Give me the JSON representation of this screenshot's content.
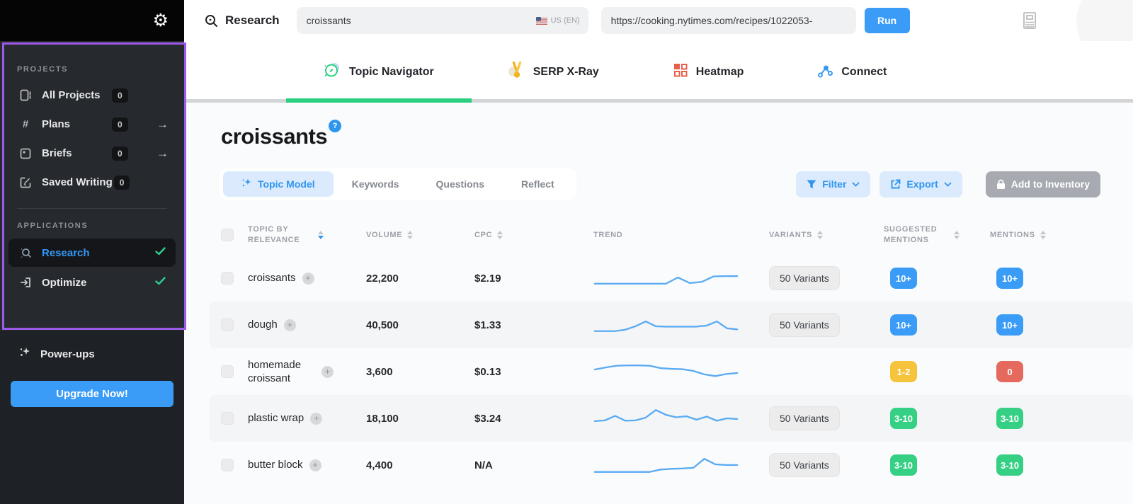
{
  "sidebar": {
    "projects_label": "PROJECTS",
    "projects": [
      {
        "label": "All Projects",
        "count": "0",
        "arrow": ""
      },
      {
        "label": "Plans",
        "count": "0",
        "arrow": "→"
      },
      {
        "label": "Briefs",
        "count": "0",
        "arrow": "→"
      },
      {
        "label": "Saved Writing",
        "count": "0",
        "arrow": ""
      }
    ],
    "applications_label": "APPLICATIONS",
    "applications": [
      {
        "label": "Research",
        "active": true
      },
      {
        "label": "Optimize",
        "active": false
      }
    ],
    "powerups_label": "Power-ups",
    "upgrade_label": "Upgrade Now!"
  },
  "topbar": {
    "app_label": "Research",
    "keyword_value": "croissants",
    "locale_label": "US (EN)",
    "url_value": "https://cooking.nytimes.com/recipes/1022053-",
    "run_label": "Run"
  },
  "tabs": [
    {
      "label": "Topic Navigator",
      "active": true
    },
    {
      "label": "SERP X-Ray",
      "active": false
    },
    {
      "label": "Heatmap",
      "active": false
    },
    {
      "label": "Connect",
      "active": false
    }
  ],
  "main": {
    "title": "croissants",
    "help_badge": "?",
    "subtabs": [
      {
        "label": "Topic Model",
        "active": true
      },
      {
        "label": "Keywords",
        "active": false
      },
      {
        "label": "Questions",
        "active": false
      },
      {
        "label": "Reflect",
        "active": false
      }
    ],
    "filter_label": "Filter",
    "export_label": "Export",
    "inventory_label": "Add to Inventory"
  },
  "table": {
    "columns": {
      "topic": "TOPIC BY RELEVANCE",
      "volume": "VOLUME",
      "cpc": "CPC",
      "trend": "TREND",
      "variants": "VARIANTS",
      "suggested": "SUGGESTED MENTIONS",
      "mentions": "MENTIONS"
    },
    "rows": [
      {
        "topic": "croissants",
        "volume": "22,200",
        "cpc": "$2.19",
        "trend": [
          12,
          12,
          12,
          12,
          12,
          12,
          12,
          30,
          14,
          17,
          33,
          34,
          34
        ],
        "variants": "50 Variants",
        "suggested": "10+",
        "suggested_color": "blue",
        "mentions": "10+",
        "mentions_color": "blue"
      },
      {
        "topic": "dough",
        "volume": "40,500",
        "cpc": "$1.33",
        "trend": [
          10,
          10,
          10,
          14,
          24,
          38,
          24,
          23,
          23,
          23,
          23,
          26,
          38,
          18,
          15
        ],
        "variants": "50 Variants",
        "suggested": "10+",
        "suggested_color": "blue",
        "mentions": "10+",
        "mentions_color": "blue"
      },
      {
        "topic": "homemade croissant",
        "volume": "3,600",
        "cpc": "$0.13",
        "trend": [
          34,
          40,
          45,
          46,
          46,
          45,
          38,
          36,
          35,
          30,
          20,
          15,
          21,
          24
        ],
        "variants": "",
        "suggested": "1-2",
        "suggested_color": "yellow",
        "mentions": "0",
        "mentions_color": "red"
      },
      {
        "topic": "plastic wrap",
        "volume": "18,100",
        "cpc": "$3.24",
        "trend": [
          20,
          22,
          35,
          21,
          22,
          30,
          52,
          38,
          31,
          34,
          24,
          33,
          21,
          28,
          26
        ],
        "variants": "50 Variants",
        "suggested": "3-10",
        "suggested_color": "green",
        "mentions": "3-10",
        "mentions_color": "green"
      },
      {
        "topic": "butter block",
        "volume": "4,400",
        "cpc": "N/A",
        "trend": [
          8,
          8,
          8,
          8,
          8,
          8,
          15,
          17,
          18,
          20,
          46,
          30,
          28,
          28
        ],
        "variants": "50 Variants",
        "suggested": "3-10",
        "suggested_color": "green",
        "mentions": "3-10",
        "mentions_color": "green"
      }
    ]
  },
  "icons": {
    "gear": "gear-icon",
    "search": "magnifier-icon",
    "flag": "us-flag-icon",
    "topic_navigator": "compass-icon",
    "serp_xray": "medal-icon",
    "heatmap": "grid-icon",
    "connect": "share-nodes-icon",
    "filter": "funnel-icon",
    "export": "export-arrow-icon",
    "inventory_lock": "lock-icon",
    "sparkle": "sparkle-icon",
    "reader": "reader-panel-icon"
  },
  "colors": {
    "accent_blue": "#3b9cf7",
    "active_green": "#2ad080",
    "highlight_purple": "#9c5be6",
    "badge_blue": "#3b9cf7",
    "badge_yellow": "#f6c33c",
    "badge_red": "#e6695d",
    "badge_green": "#35d084"
  }
}
